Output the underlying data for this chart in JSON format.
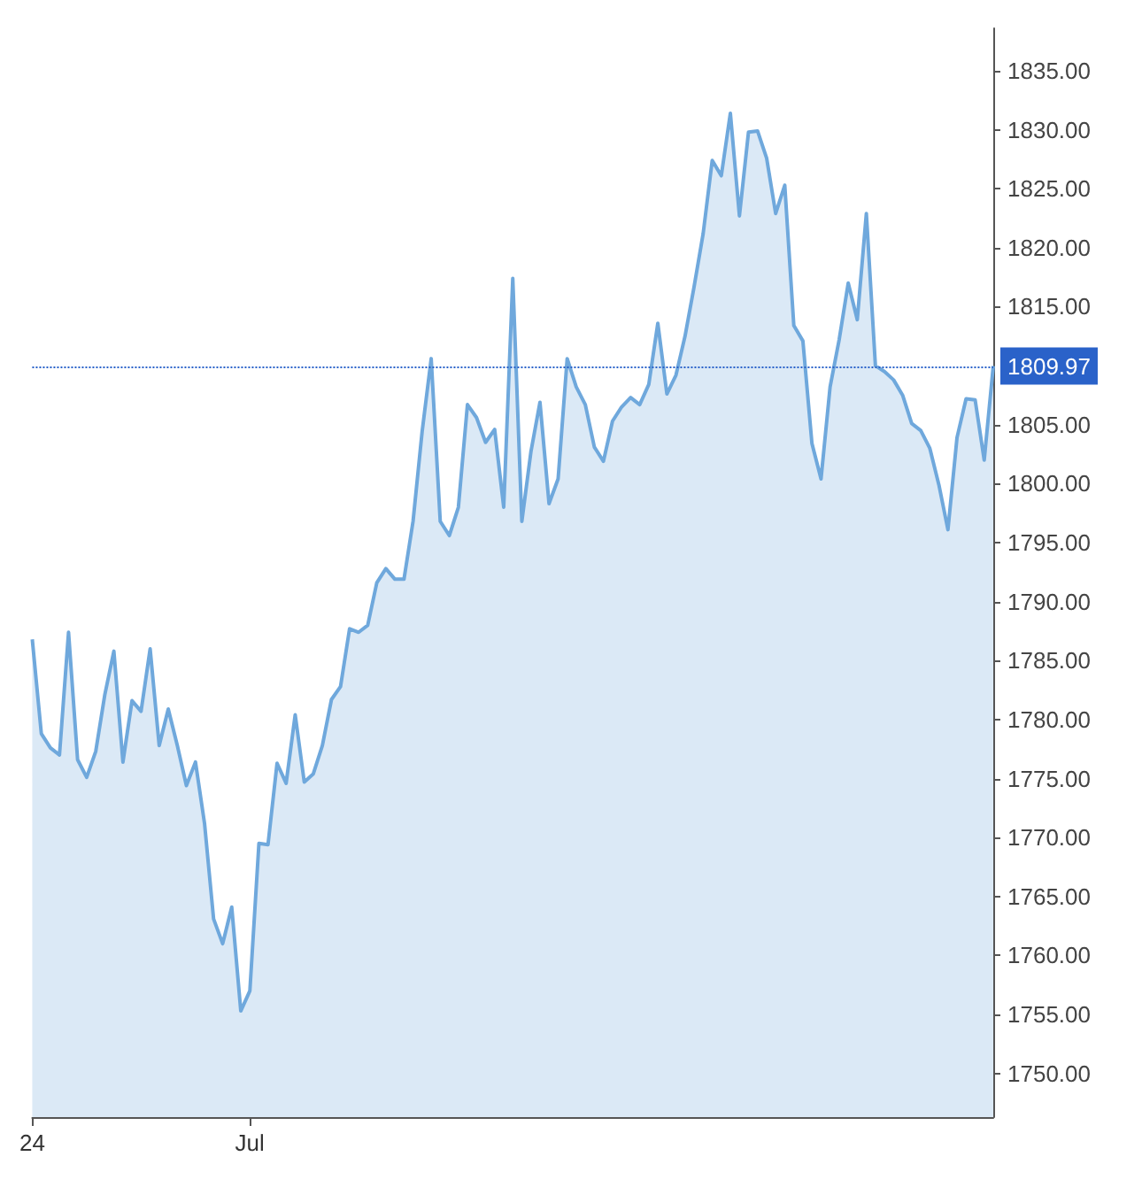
{
  "chart_data": {
    "type": "area",
    "categories": [
      "24",
      null,
      null,
      null,
      null,
      null,
      null,
      null,
      null,
      null,
      null,
      null,
      null,
      null,
      null,
      null,
      null,
      null,
      null,
      null,
      null,
      null,
      null,
      null,
      "Jul",
      null,
      null,
      null,
      null,
      null,
      null,
      null,
      null,
      null,
      null,
      null,
      null,
      null,
      null,
      null,
      null,
      null,
      null,
      null,
      null,
      null,
      null,
      null,
      null,
      null,
      null,
      null,
      null,
      null,
      null,
      null,
      null,
      null,
      null,
      null,
      null,
      null,
      null,
      null,
      null,
      null,
      null,
      null,
      null,
      null,
      null,
      null,
      null,
      null,
      null,
      null,
      null,
      null,
      null,
      null,
      null,
      null,
      null,
      null,
      null,
      null,
      null,
      null,
      null,
      null,
      null,
      null,
      null,
      null,
      null,
      null,
      null,
      null,
      null,
      null,
      null,
      null,
      null,
      null,
      null,
      null,
      null
    ],
    "series": [
      {
        "color": "#6fa8dc",
        "values": [
          1786.8,
          1778.8,
          1777.6,
          1777.0,
          1787.4,
          1776.6,
          1775.1,
          1777.3,
          1782.1,
          1785.8,
          1776.4,
          1781.6,
          1780.7,
          1786.0,
          1777.8,
          1780.9,
          1777.8,
          1774.4,
          1776.4,
          1771.2,
          1763.1,
          1761.0,
          1764.1,
          1755.3,
          1757.0,
          1769.5,
          1769.4,
          1776.3,
          1774.6,
          1780.4,
          1774.7,
          1775.4,
          1777.8,
          1781.7,
          1782.8,
          1787.7,
          1787.4,
          1788.0,
          1791.6,
          1792.8,
          1791.9,
          1791.9,
          1796.8,
          1804.4,
          1810.6,
          1796.8,
          1795.6,
          1798.0,
          1806.7,
          1805.6,
          1803.5,
          1804.6,
          1798.0,
          1817.4,
          1796.8,
          1802.7,
          1806.9,
          1798.3,
          1800.4,
          1810.6,
          1808.2,
          1806.7,
          1803.1,
          1801.9,
          1805.3,
          1806.5,
          1807.3,
          1806.7,
          1808.4,
          1813.6,
          1807.6,
          1809.2,
          1812.5,
          1816.7,
          1821.2,
          1827.4,
          1826.1,
          1831.4,
          1822.7,
          1829.8,
          1829.9,
          1827.6,
          1822.9,
          1825.3,
          1813.4,
          1812.1,
          1803.4,
          1800.4,
          1808.2,
          1812.2,
          1817.0,
          1813.9,
          1822.9,
          1810.0,
          1809.5,
          1808.8,
          1807.5,
          1805.1,
          1804.5,
          1803.0,
          1799.9,
          1796.1,
          1803.9,
          1807.2,
          1807.1,
          1802.0,
          1809.97
        ]
      }
    ],
    "ylim": [
      1746.3,
      1838.6
    ],
    "yticks": [
      {
        "value": 1750,
        "label": "1750.00"
      },
      {
        "value": 1755,
        "label": "1755.00"
      },
      {
        "value": 1760,
        "label": "1760.00"
      },
      {
        "value": 1765,
        "label": "1765.00"
      },
      {
        "value": 1770,
        "label": "1770.00"
      },
      {
        "value": 1775,
        "label": "1775.00"
      },
      {
        "value": 1780,
        "label": "1780.00"
      },
      {
        "value": 1785,
        "label": "1785.00"
      },
      {
        "value": 1790,
        "label": "1790.00"
      },
      {
        "value": 1795,
        "label": "1795.00"
      },
      {
        "value": 1800,
        "label": "1800.00"
      },
      {
        "value": 1805,
        "label": "1805.00"
      },
      {
        "value": 1815,
        "label": "1815.00"
      },
      {
        "value": 1820,
        "label": "1820.00"
      },
      {
        "value": 1825,
        "label": "1825.00"
      },
      {
        "value": 1830,
        "label": "1830.00"
      },
      {
        "value": 1835,
        "label": "1835.00"
      }
    ],
    "ref_lines": [
      {
        "axis": "y",
        "value": 1809.97,
        "label": "1809.97",
        "color": "#2a62c9",
        "line_style": "dotted"
      }
    ],
    "grid": false,
    "marker": "none",
    "line_style": "solid"
  }
}
